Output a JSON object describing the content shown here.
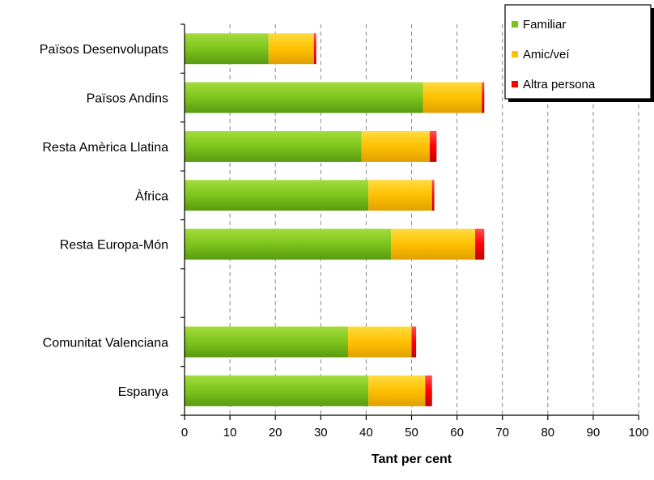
{
  "chart_data": {
    "type": "bar",
    "orientation": "horizontal",
    "stacked": true,
    "categories": [
      "Països Desenvolupats",
      "Països Andins",
      "Resta Amèrica Llatina",
      "Àfrica",
      "Resta Europa-Món",
      "",
      "Comunitat Valenciana",
      "Espanya"
    ],
    "series": [
      {
        "name": "Familiar",
        "color": "#7cc41c",
        "values": [
          18.5,
          52.5,
          39,
          40.5,
          45.5,
          null,
          36,
          40.5
        ]
      },
      {
        "name": "Amic/veí",
        "color": "#ffc000",
        "values": [
          10,
          13,
          15,
          14,
          18.5,
          null,
          14,
          12.5
        ]
      },
      {
        "name": "Altra persona",
        "color": "#ff0000",
        "values": [
          0.5,
          0.5,
          1.5,
          0.5,
          2,
          null,
          1,
          1.5
        ]
      }
    ],
    "xlabel": "Tant per cent",
    "ylabel": "",
    "xlim": [
      0,
      100
    ],
    "xticks": [
      0,
      10,
      20,
      30,
      40,
      50,
      60,
      70,
      80,
      90,
      100
    ],
    "grid": "vertical-dashed",
    "legend_position": "top-right"
  }
}
